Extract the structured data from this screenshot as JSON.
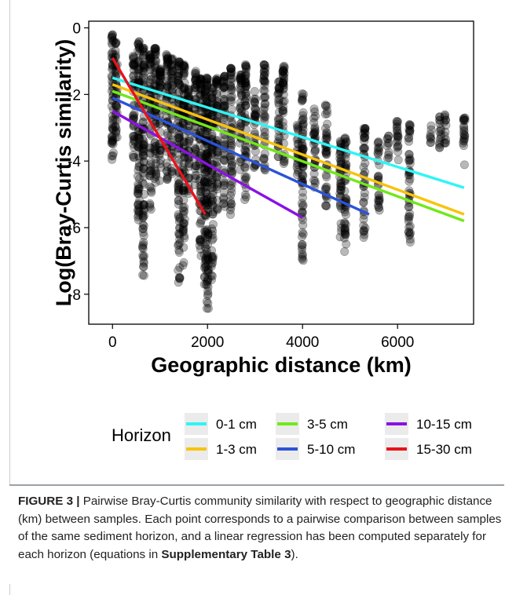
{
  "chart_data": {
    "type": "scatter",
    "xlabel": "Geographic distance (km)",
    "ylabel": "Log(Bray-Curtis similarity)",
    "xlim": [
      -500,
      7600
    ],
    "ylim": [
      -8.9,
      0.2
    ],
    "x_ticks": [
      0,
      2000,
      4000,
      6000
    ],
    "x_tick_labels": [
      "0",
      "2000",
      "4000",
      "6000"
    ],
    "y_ticks": [
      0,
      -2,
      -4,
      -6,
      -8
    ],
    "y_tick_labels": [
      "0",
      "-2",
      "-4",
      "-6",
      "-8"
    ],
    "grid": false,
    "points_style": {
      "color": "#000000",
      "opacity": 0.28
    },
    "point_columns": [
      {
        "x": 0,
        "ymin": -4.3,
        "ymax": -0.2
      },
      {
        "x": 80,
        "ymin": -3.5,
        "ymax": -0.4
      },
      {
        "x": 450,
        "ymin": -4.0,
        "ymax": -0.8
      },
      {
        "x": 550,
        "ymin": -5.8,
        "ymax": -0.4
      },
      {
        "x": 650,
        "ymin": -7.5,
        "ymax": -0.6
      },
      {
        "x": 800,
        "ymin": -5.5,
        "ymax": -0.8
      },
      {
        "x": 900,
        "ymin": -4.7,
        "ymax": -0.6
      },
      {
        "x": 1000,
        "ymin": -4.6,
        "ymax": -1.2
      },
      {
        "x": 1150,
        "ymin": -4.6,
        "ymax": -0.8
      },
      {
        "x": 1250,
        "ymin": -4.4,
        "ymax": -0.9
      },
      {
        "x": 1400,
        "ymin": -7.8,
        "ymax": -1.0
      },
      {
        "x": 1500,
        "ymin": -7.2,
        "ymax": -1.1
      },
      {
        "x": 1600,
        "ymin": -5.3,
        "ymax": -1.8
      },
      {
        "x": 1750,
        "ymin": -4.8,
        "ymax": -1.3
      },
      {
        "x": 1850,
        "ymin": -6.9,
        "ymax": -1.5
      },
      {
        "x": 1950,
        "ymin": -7.9,
        "ymax": -1.6
      },
      {
        "x": 2000,
        "ymin": -8.5,
        "ymax": -1.5
      },
      {
        "x": 2100,
        "ymin": -7.6,
        "ymax": -1.8
      },
      {
        "x": 2200,
        "ymin": -5.6,
        "ymax": -1.5
      },
      {
        "x": 2350,
        "ymin": -5.5,
        "ymax": -1.4
      },
      {
        "x": 2500,
        "ymin": -5.7,
        "ymax": -1.2
      },
      {
        "x": 2700,
        "ymin": -4.3,
        "ymax": -1.4
      },
      {
        "x": 2800,
        "ymin": -5.4,
        "ymax": -1.1
      },
      {
        "x": 3000,
        "ymin": -4.3,
        "ymax": -1.9
      },
      {
        "x": 3200,
        "ymin": -4.4,
        "ymax": -1.1
      },
      {
        "x": 3500,
        "ymin": -4.0,
        "ymax": -1.6
      },
      {
        "x": 3600,
        "ymin": -4.1,
        "ymax": -1.1
      },
      {
        "x": 3900,
        "ymin": -4.5,
        "ymax": -2.9
      },
      {
        "x": 4000,
        "ymin": -7.3,
        "ymax": -1.9
      },
      {
        "x": 4250,
        "ymin": -4.8,
        "ymax": -2.4
      },
      {
        "x": 4500,
        "ymin": -5.4,
        "ymax": -2.3
      },
      {
        "x": 4800,
        "ymin": -6.4,
        "ymax": -3.4
      },
      {
        "x": 4900,
        "ymin": -6.8,
        "ymax": -3.3
      },
      {
        "x": 5300,
        "ymin": -6.3,
        "ymax": -3.0
      },
      {
        "x": 5600,
        "ymin": -5.5,
        "ymax": -3.4
      },
      {
        "x": 5800,
        "ymin": -4.0,
        "ymax": -3.2
      },
      {
        "x": 6000,
        "ymin": -4.2,
        "ymax": -2.8
      },
      {
        "x": 6250,
        "ymin": -6.5,
        "ymax": -2.9
      },
      {
        "x": 6700,
        "ymin": -3.5,
        "ymax": -2.9
      },
      {
        "x": 6900,
        "ymin": -3.6,
        "ymax": -2.5
      },
      {
        "x": 7000,
        "ymin": -3.5,
        "ymax": -2.6
      },
      {
        "x": 7400,
        "ymin": -4.2,
        "ymax": -2.7
      }
    ],
    "series": [
      {
        "name": "0-1 cm",
        "color": "#2ff5f5",
        "x": [
          0,
          7400
        ],
        "y": [
          -1.5,
          -4.8
        ]
      },
      {
        "name": "1-3 cm",
        "color": "#f8c30c",
        "x": [
          0,
          7400
        ],
        "y": [
          -1.7,
          -5.6
        ]
      },
      {
        "name": "3-5 cm",
        "color": "#72e81a",
        "x": [
          0,
          7400
        ],
        "y": [
          -1.9,
          -5.8
        ]
      },
      {
        "name": "5-10 cm",
        "color": "#2b53d8",
        "x": [
          0,
          5400
        ],
        "y": [
          -2.1,
          -5.6
        ]
      },
      {
        "name": "10-15 cm",
        "color": "#8a12e3",
        "x": [
          0,
          4000
        ],
        "y": [
          -2.5,
          -5.7
        ]
      },
      {
        "name": "15-30 cm",
        "color": "#e8121a",
        "x": [
          0,
          1950
        ],
        "y": [
          -0.9,
          -5.6
        ]
      }
    ],
    "legend": {
      "title": "Horizon",
      "position": "bottom"
    }
  },
  "caption": {
    "label": "FIGURE 3 |",
    "text": " Pairwise Bray-Curtis community similarity with respect to geographic distance (km) between samples. Each point corresponds to a pairwise comparison between samples of the same sediment horizon, and a linear regression has been computed separately for each horizon (equations in ",
    "ref": "Supplementary Table 3",
    "end": ")."
  }
}
